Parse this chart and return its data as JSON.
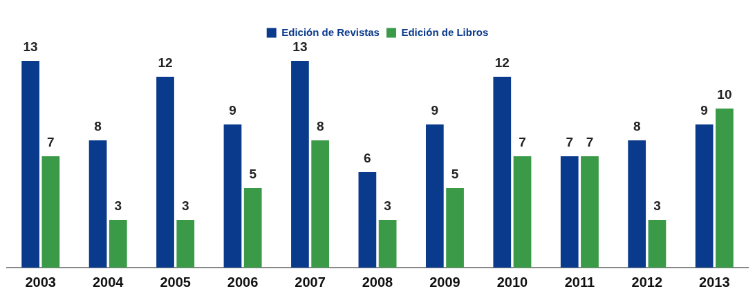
{
  "chart_data": {
    "type": "bar",
    "categories": [
      "2003",
      "2004",
      "2005",
      "2006",
      "2007",
      "2008",
      "2009",
      "2010",
      "2011",
      "2012",
      "2013"
    ],
    "series": [
      {
        "name": "Edición de Revistas",
        "color": "#0a3a8c",
        "values": [
          13,
          8,
          12,
          9,
          13,
          6,
          9,
          12,
          7,
          8,
          9
        ]
      },
      {
        "name": "Edición de Libros",
        "color": "#3a9a48",
        "values": [
          7,
          3,
          3,
          5,
          8,
          3,
          5,
          7,
          7,
          3,
          10
        ]
      }
    ],
    "data_labels": true,
    "grid": false,
    "legend": "top"
  }
}
